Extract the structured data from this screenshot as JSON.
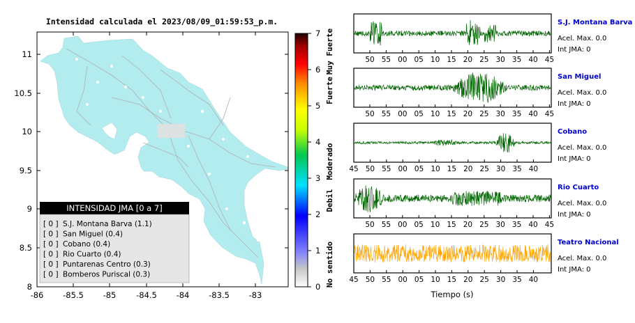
{
  "title": "Intensidad calculada el 2023/08/09_01:59:53_p.m.",
  "map": {
    "x_ticks": [
      "-86",
      "-85.5",
      "-85",
      "-84.5",
      "-84",
      "-83.5",
      "-83"
    ],
    "y_ticks": [
      "11",
      "10.5",
      "10",
      "9.5",
      "9",
      "8.5",
      "8"
    ],
    "land_color": "#b2ecee",
    "sea_color": "#ffffff",
    "road_color": "#b0b0b0"
  },
  "colorbar": {
    "ticks": [
      "0",
      "1",
      "2",
      "3",
      "4",
      "5",
      "6",
      "7"
    ],
    "labels": [
      "No sentido",
      "Debil",
      "Moderado",
      "Fuerte",
      "Muy Fuerte"
    ]
  },
  "legend": {
    "title": "INTENSIDAD JMA [0 a 7]",
    "items": [
      {
        "level": "[ 0 ]",
        "name": "S.J. Montana Barva (1.1)"
      },
      {
        "level": "[ 0 ]",
        "name": "San Miguel (0.4)"
      },
      {
        "level": "[ 0 ]",
        "name": "Cobano (0.4)"
      },
      {
        "level": "[ 0 ]",
        "name": "Rio Cuarto (0.4)"
      },
      {
        "level": "[ 0 ]",
        "name": "Puntarenas Centro (0.3)"
      },
      {
        "level": "[ 0 ]",
        "name": "Bomberos Puriscal (0.3)"
      }
    ]
  },
  "waveforms": [
    {
      "station": "S.J. Montana Barva",
      "acel": "Acel. Max. 0.0",
      "int": "Int JMA: 0",
      "color": "#006400",
      "ticks": [
        "50",
        "55",
        "00",
        "05",
        "10",
        "15",
        "20",
        "25",
        "30",
        "35",
        "40",
        "45"
      ]
    },
    {
      "station": "San Miguel",
      "acel": "Acel. Max. 0.0",
      "int": "Int JMA: 0",
      "color": "#006400",
      "ticks": [
        "50",
        "55",
        "00",
        "05",
        "10",
        "15",
        "20",
        "25",
        "30",
        "35",
        "40",
        "45"
      ]
    },
    {
      "station": "Cobano",
      "acel": "Acel. Max. 0.0",
      "int": "Int JMA: 0",
      "color": "#006400",
      "ticks": [
        "45",
        "50",
        "55",
        "00",
        "05",
        "10",
        "15",
        "20",
        "25",
        "30",
        "35",
        "40"
      ]
    },
    {
      "station": "Rio Cuarto",
      "acel": "Acel. Max. 0.0",
      "int": "Int JMA: 0",
      "color": "#006400",
      "ticks": [
        "50",
        "55",
        "00",
        "05",
        "10",
        "15",
        "20",
        "25",
        "30",
        "35",
        "40",
        "45"
      ]
    },
    {
      "station": "Teatro Nacional",
      "acel": "Acel. Max. 0.0",
      "int": "Int JMA: 0",
      "color": "#ffa500",
      "ticks": [
        "45",
        "50",
        "55",
        "00",
        "05",
        "10",
        "15",
        "20",
        "25",
        "30",
        "35",
        "40"
      ]
    }
  ],
  "xlabel": "Tiempo (s)",
  "chart_data": [
    {
      "type": "heatmap",
      "title": "Intensidad calculada el 2023/08/09_01:59:53_p.m.",
      "xlim": [
        -86,
        -82.6
      ],
      "ylim": [
        8,
        11.35
      ],
      "colorbar_range": [
        0,
        7
      ],
      "colorbar_labels": [
        "No sentido",
        "Debil",
        "Moderado",
        "Fuerte",
        "Muy Fuerte"
      ],
      "stations": [
        {
          "name": "S.J. Montana Barva",
          "intensity": 1.1
        },
        {
          "name": "San Miguel",
          "intensity": 0.4
        },
        {
          "name": "Cobano",
          "intensity": 0.4
        },
        {
          "name": "Rio Cuarto",
          "intensity": 0.4
        },
        {
          "name": "Puntarenas Centro",
          "intensity": 0.3
        },
        {
          "name": "Bomberos Puriscal",
          "intensity": 0.3
        }
      ]
    },
    {
      "type": "line",
      "xlabel": "Tiempo (s)",
      "series": [
        {
          "name": "S.J. Montana Barva",
          "acel_max": 0.0,
          "int_jma": 0
        },
        {
          "name": "San Miguel",
          "acel_max": 0.0,
          "int_jma": 0
        },
        {
          "name": "Cobano",
          "acel_max": 0.0,
          "int_jma": 0
        },
        {
          "name": "Rio Cuarto",
          "acel_max": 0.0,
          "int_jma": 0
        },
        {
          "name": "Teatro Nacional",
          "acel_max": 0.0,
          "int_jma": 0
        }
      ]
    }
  ]
}
